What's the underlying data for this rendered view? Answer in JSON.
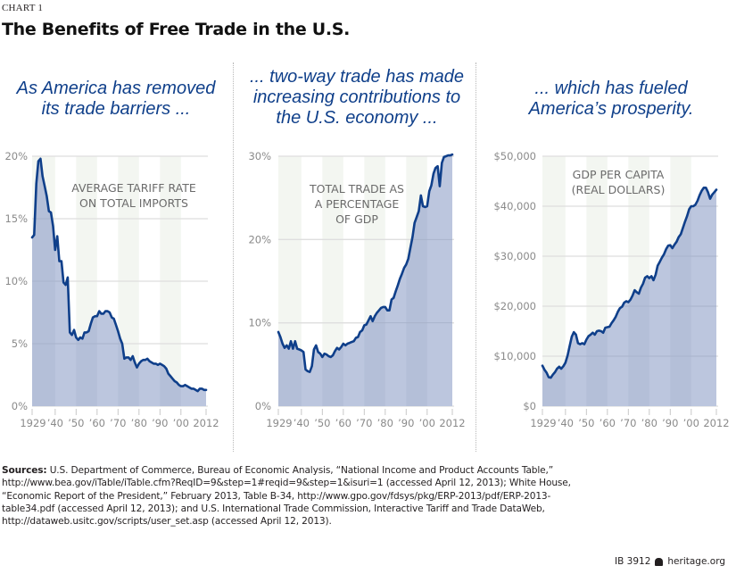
{
  "header": {
    "chart_label": "CHART 1",
    "title": "The Benefits of Free Trade in the U.S."
  },
  "panels": [
    {
      "heading_lines": [
        "As America has removed",
        "its trade barriers ..."
      ]
    },
    {
      "heading_lines": [
        "... two-way trade has made",
        "increasing contributions to",
        "the U.S. economy ..."
      ]
    },
    {
      "heading_lines": [
        "... which has fueled",
        "America’s prosperity."
      ]
    }
  ],
  "colors": {
    "line": "#0f3f8a",
    "fill": "#bcc6de",
    "fill_band": "#b4bfd8",
    "band": "#f3f6f1",
    "grid": "#dedede",
    "heading": "#0f3f8a",
    "axis_text": "#8a8a8a",
    "annotation_text": "#6b6b6b"
  },
  "chart_data": [
    {
      "type": "area",
      "title": "AVERAGE TARIFF RATE ON TOTAL IMPORTS",
      "title_lines": [
        "AVERAGE TARIFF RATE",
        "ON TOTAL IMPORTS"
      ],
      "xlabel": "",
      "ylabel": "",
      "xlim": [
        1929,
        2012
      ],
      "ylim": [
        0,
        20
      ],
      "yticks": [
        0,
        5,
        10,
        15,
        20
      ],
      "ytick_labels": [
        "0%",
        "5%",
        "10%",
        "15%",
        "20%"
      ],
      "xticks": [
        1929,
        1940,
        1950,
        1960,
        1970,
        1980,
        1990,
        2000,
        2012
      ],
      "xtick_labels": [
        "1929",
        "’40",
        "’50",
        "’60",
        "’70",
        "’80",
        "’90",
        "’00",
        "2012"
      ],
      "grid": true,
      "x": [
        1929,
        1930,
        1931,
        1932,
        1933,
        1934,
        1935,
        1936,
        1937,
        1938,
        1939,
        1940,
        1941,
        1942,
        1943,
        1944,
        1945,
        1946,
        1947,
        1948,
        1949,
        1950,
        1951,
        1952,
        1953,
        1954,
        1955,
        1956,
        1957,
        1958,
        1959,
        1960,
        1961,
        1962,
        1963,
        1964,
        1965,
        1966,
        1967,
        1968,
        1969,
        1970,
        1971,
        1972,
        1973,
        1974,
        1975,
        1976,
        1977,
        1978,
        1979,
        1980,
        1981,
        1982,
        1983,
        1984,
        1985,
        1986,
        1987,
        1988,
        1989,
        1990,
        1991,
        1992,
        1993,
        1994,
        1995,
        1996,
        1997,
        1998,
        1999,
        2000,
        2001,
        2002,
        2003,
        2004,
        2005,
        2006,
        2007,
        2008,
        2009,
        2010,
        2011,
        2012
      ],
      "values": [
        13.5,
        13.7,
        17.8,
        19.6,
        19.8,
        18.4,
        17.6,
        16.8,
        15.6,
        15.5,
        14.4,
        12.5,
        13.6,
        11.6,
        11.6,
        9.9,
        9.7,
        10.3,
        5.9,
        5.7,
        6.1,
        5.5,
        5.3,
        5.5,
        5.4,
        5.9,
        5.9,
        6.0,
        6.6,
        7.1,
        7.2,
        7.2,
        7.6,
        7.4,
        7.4,
        7.6,
        7.6,
        7.5,
        7.1,
        7.0,
        6.5,
        6.0,
        5.4,
        5.0,
        3.8,
        3.9,
        3.9,
        3.7,
        4.0,
        3.5,
        3.1,
        3.4,
        3.6,
        3.7,
        3.7,
        3.8,
        3.6,
        3.5,
        3.4,
        3.4,
        3.3,
        3.4,
        3.3,
        3.2,
        3.0,
        2.6,
        2.4,
        2.2,
        2.0,
        1.9,
        1.7,
        1.6,
        1.6,
        1.7,
        1.6,
        1.5,
        1.4,
        1.4,
        1.3,
        1.2,
        1.4,
        1.4,
        1.3,
        1.3
      ]
    },
    {
      "type": "area",
      "title": "TOTAL TRADE AS A PERCENTAGE OF GDP",
      "title_lines": [
        "TOTAL TRADE AS",
        "A PERCENTAGE",
        "OF GDP"
      ],
      "xlabel": "",
      "ylabel": "",
      "xlim": [
        1929,
        2012
      ],
      "ylim": [
        0,
        30
      ],
      "yticks": [
        0,
        10,
        20,
        30
      ],
      "ytick_labels": [
        "0%",
        "10%",
        "20%",
        "30%"
      ],
      "xticks": [
        1929,
        1940,
        1950,
        1960,
        1970,
        1980,
        1990,
        2000,
        2012
      ],
      "xtick_labels": [
        "1929",
        "’40",
        "’50",
        "’60",
        "’70",
        "’80",
        "’90",
        "’00",
        "2012"
      ],
      "grid": true,
      "x": [
        1929,
        1930,
        1931,
        1932,
        1933,
        1934,
        1935,
        1936,
        1937,
        1938,
        1939,
        1940,
        1941,
        1942,
        1943,
        1944,
        1945,
        1946,
        1947,
        1948,
        1949,
        1950,
        1951,
        1952,
        1953,
        1954,
        1955,
        1956,
        1957,
        1958,
        1959,
        1960,
        1961,
        1962,
        1963,
        1964,
        1965,
        1966,
        1967,
        1968,
        1969,
        1970,
        1971,
        1972,
        1973,
        1974,
        1975,
        1976,
        1977,
        1978,
        1979,
        1980,
        1981,
        1982,
        1983,
        1984,
        1985,
        1986,
        1987,
        1988,
        1989,
        1990,
        1991,
        1992,
        1993,
        1994,
        1995,
        1996,
        1997,
        1998,
        1999,
        2000,
        2001,
        2002,
        2003,
        2004,
        2005,
        2006,
        2007,
        2008,
        2009,
        2010,
        2011,
        2012
      ],
      "values": [
        8.9,
        8.3,
        7.5,
        7.0,
        7.3,
        6.9,
        7.8,
        6.9,
        7.8,
        6.9,
        6.8,
        6.7,
        6.5,
        4.4,
        4.2,
        4.1,
        4.8,
        6.8,
        7.3,
        6.5,
        6.3,
        5.9,
        6.3,
        6.2,
        6.0,
        5.9,
        6.1,
        6.6,
        7.0,
        6.8,
        7.1,
        7.5,
        7.3,
        7.5,
        7.6,
        7.7,
        7.8,
        8.2,
        8.3,
        8.9,
        9.1,
        9.7,
        9.8,
        10.3,
        10.8,
        10.2,
        10.8,
        11.2,
        11.5,
        11.8,
        11.9,
        11.9,
        11.5,
        11.5,
        12.8,
        13.0,
        13.8,
        14.5,
        15.3,
        15.9,
        16.6,
        17.0,
        17.7,
        19.0,
        20.3,
        22.0,
        22.7,
        23.4,
        25.3,
        24.0,
        23.9,
        24.0,
        25.8,
        26.5,
        27.9,
        28.6,
        28.8,
        26.4,
        29.2,
        29.9,
        30.0,
        30.1,
        30.1,
        30.2
      ],
      "note": "reading approximated from the curve"
    },
    {
      "type": "area",
      "title": "GDP PER CAPITA (REAL DOLLARS)",
      "title_lines": [
        "GDP PER CAPITA",
        "(REAL DOLLARS)"
      ],
      "xlabel": "",
      "ylabel": "",
      "xlim": [
        1929,
        2012
      ],
      "ylim": [
        0,
        50000
      ],
      "yticks": [
        0,
        10000,
        20000,
        30000,
        40000,
        50000
      ],
      "ytick_labels": [
        "$0",
        "$10,000",
        "$20,000",
        "$30,000",
        "$40,000",
        "$50,000"
      ],
      "xticks": [
        1929,
        1940,
        1950,
        1960,
        1970,
        1980,
        1990,
        2000,
        2012
      ],
      "xtick_labels": [
        "1929",
        "’40",
        "’50",
        "’60",
        "’70",
        "’80",
        "’90",
        "’00",
        "2012"
      ],
      "grid": true,
      "x": [
        1929,
        1930,
        1931,
        1932,
        1933,
        1934,
        1935,
        1936,
        1937,
        1938,
        1939,
        1940,
        1941,
        1942,
        1943,
        1944,
        1945,
        1946,
        1947,
        1948,
        1949,
        1950,
        1951,
        1952,
        1953,
        1954,
        1955,
        1956,
        1957,
        1958,
        1959,
        1960,
        1961,
        1962,
        1963,
        1964,
        1965,
        1966,
        1967,
        1968,
        1969,
        1970,
        1971,
        1972,
        1973,
        1974,
        1975,
        1976,
        1977,
        1978,
        1979,
        1980,
        1981,
        1982,
        1983,
        1984,
        1985,
        1986,
        1987,
        1988,
        1989,
        1990,
        1991,
        1992,
        1993,
        1994,
        1995,
        1996,
        1997,
        1998,
        1999,
        2000,
        2001,
        2002,
        2003,
        2004,
        2005,
        2006,
        2007,
        2008,
        2009,
        2010,
        2011,
        2012
      ],
      "values": [
        8100,
        7300,
        6700,
        5800,
        5700,
        6300,
        6800,
        7500,
        7900,
        7500,
        8000,
        8700,
        10100,
        12000,
        13900,
        14800,
        14300,
        12600,
        12400,
        12600,
        12400,
        13300,
        14000,
        14300,
        14700,
        14300,
        15000,
        15100,
        15000,
        14700,
        15700,
        15800,
        15900,
        16600,
        17200,
        17900,
        18900,
        19600,
        19900,
        20700,
        21000,
        20800,
        21300,
        22100,
        23200,
        22800,
        22500,
        23700,
        24500,
        25700,
        26000,
        25600,
        26000,
        25200,
        26300,
        28100,
        28900,
        29700,
        30400,
        31400,
        32100,
        32200,
        31600,
        32300,
        32900,
        33800,
        34400,
        35600,
        36900,
        38000,
        39400,
        40000,
        40000,
        40300,
        41100,
        42200,
        43100,
        43700,
        43700,
        42800,
        41500,
        42300,
        42800,
        43300
      ]
    }
  ],
  "sources": {
    "label": "Sources:",
    "lines": [
      " U.S. Department of Commerce, Bureau of Economic Analysis, “National Income and Product Accounts Table,”",
      "http://www.bea.gov/iTable/iTable.cfm?ReqID=9&step=1#reqid=9&step=1&isuri=1 (accessed April 12, 2013); White House,",
      "“Economic Report of the President,” February 2013, Table B-34, http://www.gpo.gov/fdsys/pkg/ERP-2013/pdf/ERP-2013-",
      "table34.pdf (accessed April 12, 2013); and U.S. International Trade Commission, Interactive Tariff and Trade DataWeb,",
      "http://dataweb.usitc.gov/scripts/user_set.asp (accessed April 12, 2013)."
    ]
  },
  "footer": {
    "brief_id": "IB 3912",
    "logo_icon": "liberty-bell-icon",
    "site": "heritage.org"
  }
}
